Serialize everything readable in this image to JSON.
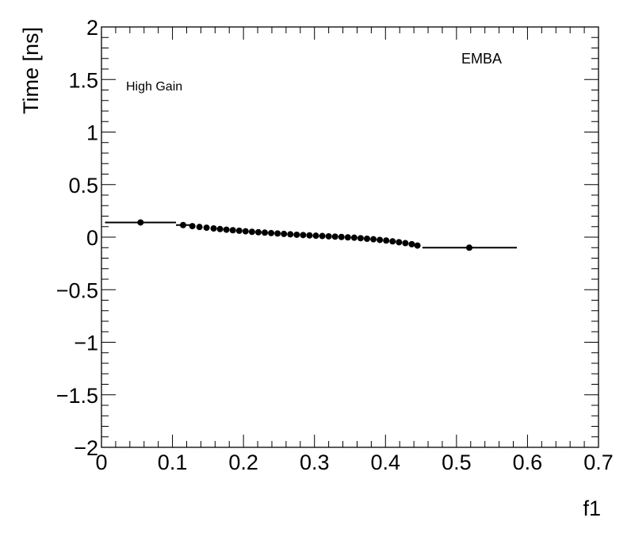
{
  "chart_data": {
    "type": "scatter",
    "title": "",
    "xlabel": "f1",
    "ylabel": "Time [ns]",
    "xlim": [
      0,
      0.7
    ],
    "ylim": [
      -2,
      2
    ],
    "x_ticks": [
      0,
      0.1,
      0.2,
      0.3,
      0.4,
      0.5,
      0.6,
      0.7
    ],
    "x_tick_labels": [
      "0",
      "0.1",
      "0.2",
      "0.3",
      "0.4",
      "0.5",
      "0.6",
      "0.7"
    ],
    "y_ticks": [
      -2,
      -1.5,
      -1,
      -0.5,
      0,
      0.5,
      1,
      1.5,
      2
    ],
    "y_tick_labels": [
      "−2",
      "−1.5",
      "−1",
      "−0.5",
      "0",
      "0.5",
      "1",
      "1.5",
      "2"
    ],
    "grid": false,
    "annotations": [
      {
        "text": "High Gain"
      },
      {
        "text": "EMBA"
      }
    ],
    "series": [
      {
        "marker": "circle",
        "color": "#000000",
        "points": [
          {
            "x": 0.055,
            "y": 0.14,
            "xmin": 0.005,
            "xmax": 0.105
          },
          {
            "x": 0.115,
            "y": 0.115,
            "xmin": 0.105,
            "xmax": 0.125
          },
          {
            "x": 0.128,
            "y": 0.105
          },
          {
            "x": 0.138,
            "y": 0.097
          },
          {
            "x": 0.148,
            "y": 0.09
          },
          {
            "x": 0.158,
            "y": 0.083
          },
          {
            "x": 0.167,
            "y": 0.077
          },
          {
            "x": 0.176,
            "y": 0.071
          },
          {
            "x": 0.185,
            "y": 0.066
          },
          {
            "x": 0.194,
            "y": 0.061
          },
          {
            "x": 0.203,
            "y": 0.056
          },
          {
            "x": 0.212,
            "y": 0.051
          },
          {
            "x": 0.221,
            "y": 0.047
          },
          {
            "x": 0.23,
            "y": 0.043
          },
          {
            "x": 0.239,
            "y": 0.039
          },
          {
            "x": 0.248,
            "y": 0.035
          },
          {
            "x": 0.257,
            "y": 0.031
          },
          {
            "x": 0.266,
            "y": 0.027
          },
          {
            "x": 0.275,
            "y": 0.023
          },
          {
            "x": 0.284,
            "y": 0.02
          },
          {
            "x": 0.293,
            "y": 0.017
          },
          {
            "x": 0.302,
            "y": 0.014
          },
          {
            "x": 0.311,
            "y": 0.011
          },
          {
            "x": 0.32,
            "y": 0.008
          },
          {
            "x": 0.329,
            "y": 0.005
          },
          {
            "x": 0.338,
            "y": 0.002
          },
          {
            "x": 0.347,
            "y": -0.002
          },
          {
            "x": 0.356,
            "y": -0.005
          },
          {
            "x": 0.365,
            "y": -0.01
          },
          {
            "x": 0.374,
            "y": -0.015
          },
          {
            "x": 0.383,
            "y": -0.02
          },
          {
            "x": 0.392,
            "y": -0.026
          },
          {
            "x": 0.401,
            "y": -0.032
          },
          {
            "x": 0.41,
            "y": -0.04
          },
          {
            "x": 0.419,
            "y": -0.048
          },
          {
            "x": 0.428,
            "y": -0.057
          },
          {
            "x": 0.437,
            "y": -0.067
          },
          {
            "x": 0.445,
            "y": -0.08
          },
          {
            "x": 0.518,
            "y": -0.1,
            "xmin": 0.452,
            "xmax": 0.585
          }
        ]
      }
    ]
  }
}
